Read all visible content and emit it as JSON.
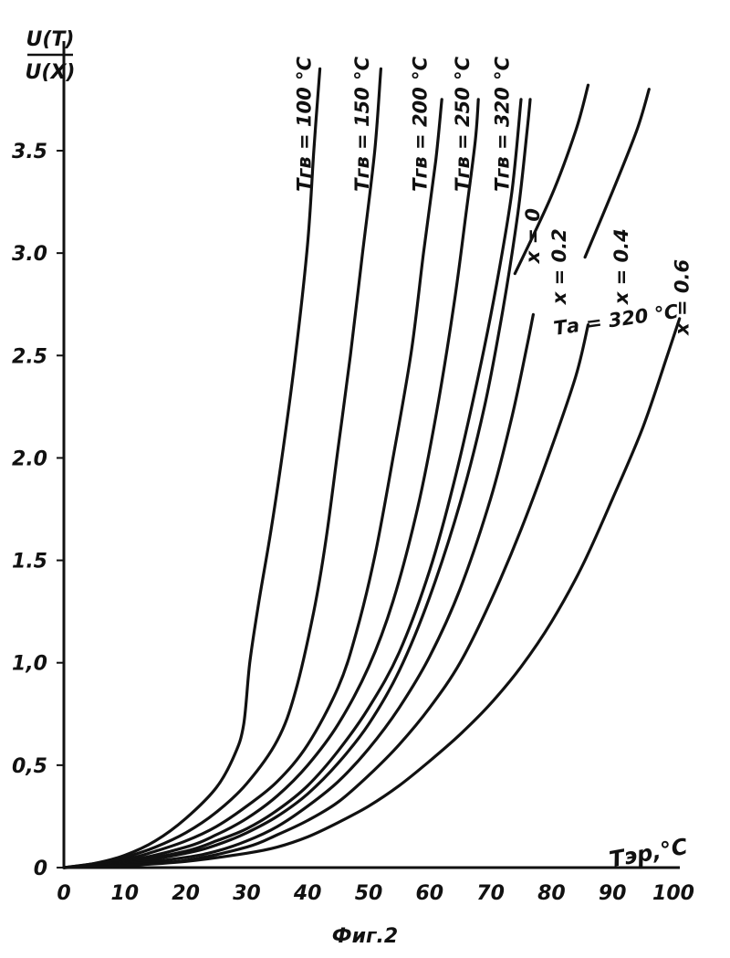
{
  "chart_data": {
    "type": "line",
    "title": "",
    "caption": "Фиг.2",
    "ylabel_top": "U(T)",
    "ylabel_bottom": "U(X)",
    "xlabel": "Тэр,°С",
    "xlim": [
      0,
      100
    ],
    "ylim": [
      0,
      3.8
    ],
    "x_ticks": [
      {
        "value": 0,
        "label": "0"
      },
      {
        "value": 10,
        "label": "10"
      },
      {
        "value": 20,
        "label": "20"
      },
      {
        "value": 30,
        "label": "30"
      },
      {
        "value": 40,
        "label": "40"
      },
      {
        "value": 50,
        "label": "50"
      },
      {
        "value": 60,
        "label": "60"
      },
      {
        "value": 70,
        "label": "70"
      },
      {
        "value": 80,
        "label": "80"
      },
      {
        "value": 90,
        "label": "90"
      },
      {
        "value": 100,
        "label": "100"
      }
    ],
    "y_ticks": [
      {
        "value": 0,
        "label": "0"
      },
      {
        "value": 0.5,
        "label": "0,5"
      },
      {
        "value": 1.0,
        "label": "1,0"
      },
      {
        "value": 1.5,
        "label": "1.5"
      },
      {
        "value": 2.0,
        "label": "2.0"
      },
      {
        "value": 2.5,
        "label": "2.5"
      },
      {
        "value": 3.0,
        "label": "3.0"
      },
      {
        "value": 3.5,
        "label": "3.5"
      }
    ],
    "grid": false,
    "series": [
      {
        "name": "Тгв = 100 °С",
        "points": [
          [
            0,
            0
          ],
          [
            5,
            0.02
          ],
          [
            10,
            0.06
          ],
          [
            15,
            0.13
          ],
          [
            20,
            0.24
          ],
          [
            25,
            0.39
          ],
          [
            28,
            0.55
          ],
          [
            29.5,
            0.7
          ],
          [
            30.5,
            1.0
          ],
          [
            32,
            1.3
          ],
          [
            34,
            1.65
          ],
          [
            36,
            2.05
          ],
          [
            38,
            2.5
          ],
          [
            40,
            3.05
          ],
          [
            41,
            3.5
          ],
          [
            42,
            3.9
          ]
        ]
      },
      {
        "name": "Тгв = 150 °С",
        "points": [
          [
            0,
            0
          ],
          [
            5,
            0.015
          ],
          [
            10,
            0.05
          ],
          [
            15,
            0.1
          ],
          [
            20,
            0.17
          ],
          [
            25,
            0.27
          ],
          [
            30,
            0.41
          ],
          [
            35,
            0.62
          ],
          [
            38,
            0.86
          ],
          [
            41,
            1.25
          ],
          [
            43,
            1.6
          ],
          [
            45,
            2.05
          ],
          [
            47,
            2.5
          ],
          [
            49,
            3.0
          ],
          [
            51,
            3.5
          ],
          [
            52,
            3.9
          ]
        ]
      },
      {
        "name": "Тгв = 200 °С",
        "points": [
          [
            0,
            0
          ],
          [
            10,
            0.04
          ],
          [
            15,
            0.08
          ],
          [
            20,
            0.13
          ],
          [
            25,
            0.2
          ],
          [
            30,
            0.3
          ],
          [
            35,
            0.42
          ],
          [
            40,
            0.6
          ],
          [
            45,
            0.88
          ],
          [
            48,
            1.15
          ],
          [
            51,
            1.52
          ],
          [
            54,
            2.0
          ],
          [
            57,
            2.52
          ],
          [
            59,
            3.0
          ],
          [
            61,
            3.45
          ],
          [
            62,
            3.75
          ]
        ]
      },
      {
        "name": "Тгв = 250 °С",
        "points": [
          [
            0,
            0
          ],
          [
            10,
            0.03
          ],
          [
            20,
            0.1
          ],
          [
            25,
            0.16
          ],
          [
            30,
            0.24
          ],
          [
            35,
            0.35
          ],
          [
            40,
            0.5
          ],
          [
            45,
            0.7
          ],
          [
            50,
            0.98
          ],
          [
            54,
            1.3
          ],
          [
            58,
            1.75
          ],
          [
            61,
            2.2
          ],
          [
            64,
            2.75
          ],
          [
            66,
            3.2
          ],
          [
            67.5,
            3.55
          ],
          [
            68,
            3.75
          ]
        ]
      },
      {
        "name": "Тгв = 320 °С",
        "points": [
          [
            0,
            0
          ],
          [
            10,
            0.025
          ],
          [
            20,
            0.08
          ],
          [
            25,
            0.13
          ],
          [
            30,
            0.19
          ],
          [
            35,
            0.28
          ],
          [
            40,
            0.4
          ],
          [
            45,
            0.57
          ],
          [
            50,
            0.78
          ],
          [
            55,
            1.05
          ],
          [
            60,
            1.45
          ],
          [
            64,
            1.88
          ],
          [
            68,
            2.4
          ],
          [
            71,
            2.85
          ],
          [
            73.5,
            3.3
          ],
          [
            75,
            3.75
          ]
        ]
      },
      {
        "name": "x = 0",
        "points": [
          [
            0,
            0
          ],
          [
            10,
            0.02
          ],
          [
            20,
            0.07
          ],
          [
            25,
            0.11
          ],
          [
            30,
            0.17
          ],
          [
            35,
            0.25
          ],
          [
            40,
            0.36
          ],
          [
            45,
            0.51
          ],
          [
            50,
            0.7
          ],
          [
            55,
            0.96
          ],
          [
            60,
            1.32
          ],
          [
            65,
            1.78
          ],
          [
            69,
            2.25
          ],
          [
            72,
            2.72
          ],
          [
            74.5,
            3.2
          ],
          [
            76,
            3.6
          ],
          [
            76.5,
            3.75
          ]
        ]
      },
      {
        "name": "x = 0.2",
        "points": [
          [
            0,
            0
          ],
          [
            10,
            0.015
          ],
          [
            20,
            0.05
          ],
          [
            25,
            0.08
          ],
          [
            30,
            0.13
          ],
          [
            35,
            0.2
          ],
          [
            40,
            0.3
          ],
          [
            45,
            0.42
          ],
          [
            50,
            0.58
          ],
          [
            55,
            0.78
          ],
          [
            60,
            1.03
          ],
          [
            65,
            1.36
          ],
          [
            70,
            1.8
          ],
          [
            73.5,
            2.2
          ],
          [
            76,
            2.55
          ],
          [
            77,
            2.7
          ]
        ]
      },
      {
        "name": "x = 0.4",
        "points": [
          [
            0,
            0
          ],
          [
            10,
            0.01
          ],
          [
            20,
            0.035
          ],
          [
            30,
            0.1
          ],
          [
            35,
            0.16
          ],
          [
            40,
            0.23
          ],
          [
            45,
            0.32
          ],
          [
            50,
            0.45
          ],
          [
            55,
            0.6
          ],
          [
            60,
            0.78
          ],
          [
            65,
            1.0
          ],
          [
            70,
            1.3
          ],
          [
            75,
            1.65
          ],
          [
            80,
            2.05
          ],
          [
            84,
            2.4
          ],
          [
            86,
            2.65
          ]
        ]
      },
      {
        "name": "x = 0.6",
        "points": [
          [
            0,
            0
          ],
          [
            10,
            0.01
          ],
          [
            20,
            0.03
          ],
          [
            30,
            0.07
          ],
          [
            35,
            0.1
          ],
          [
            40,
            0.15
          ],
          [
            45,
            0.22
          ],
          [
            50,
            0.3
          ],
          [
            55,
            0.4
          ],
          [
            60,
            0.52
          ],
          [
            65,
            0.65
          ],
          [
            70,
            0.8
          ],
          [
            75,
            0.98
          ],
          [
            80,
            1.2
          ],
          [
            85,
            1.47
          ],
          [
            90,
            1.8
          ],
          [
            95,
            2.15
          ],
          [
            99,
            2.5
          ],
          [
            101,
            2.68
          ]
        ]
      },
      {
        "name": "",
        "points": [
          [
            74,
            2.9
          ],
          [
            80,
            3.28
          ],
          [
            84,
            3.6
          ],
          [
            86,
            3.82
          ]
        ]
      },
      {
        "name": "",
        "points": [
          [
            85.5,
            2.98
          ],
          [
            90,
            3.3
          ],
          [
            94,
            3.6
          ],
          [
            96,
            3.8
          ]
        ]
      }
    ],
    "annotations": [
      {
        "text": "Тгв = 100 °С",
        "x": 40.5,
        "y": 3.3,
        "rotate": -90
      },
      {
        "text": "Тгв = 150 °С",
        "x": 50,
        "y": 3.3,
        "rotate": -90
      },
      {
        "text": "Тгв = 200 °С",
        "x": 59.5,
        "y": 3.3,
        "rotate": -90
      },
      {
        "text": "Тгв = 250 °С",
        "x": 66.5,
        "y": 3.3,
        "rotate": -90
      },
      {
        "text": "Тгв = 320 °С",
        "x": 73,
        "y": 3.3,
        "rotate": -90
      },
      {
        "text": "x = 0",
        "x": 78,
        "y": 2.95,
        "rotate": -90
      },
      {
        "text": "x = 0.2",
        "x": 82.3,
        "y": 2.75,
        "rotate": -90
      },
      {
        "text": "x = 0.4",
        "x": 92.5,
        "y": 2.75,
        "rotate": -90
      },
      {
        "text": "x = 0.6",
        "x": 102.5,
        "y": 2.6,
        "rotate": -90
      },
      {
        "text": "Та = 320 °С",
        "x": 80.5,
        "y": 2.6,
        "rotate": -8
      }
    ]
  }
}
